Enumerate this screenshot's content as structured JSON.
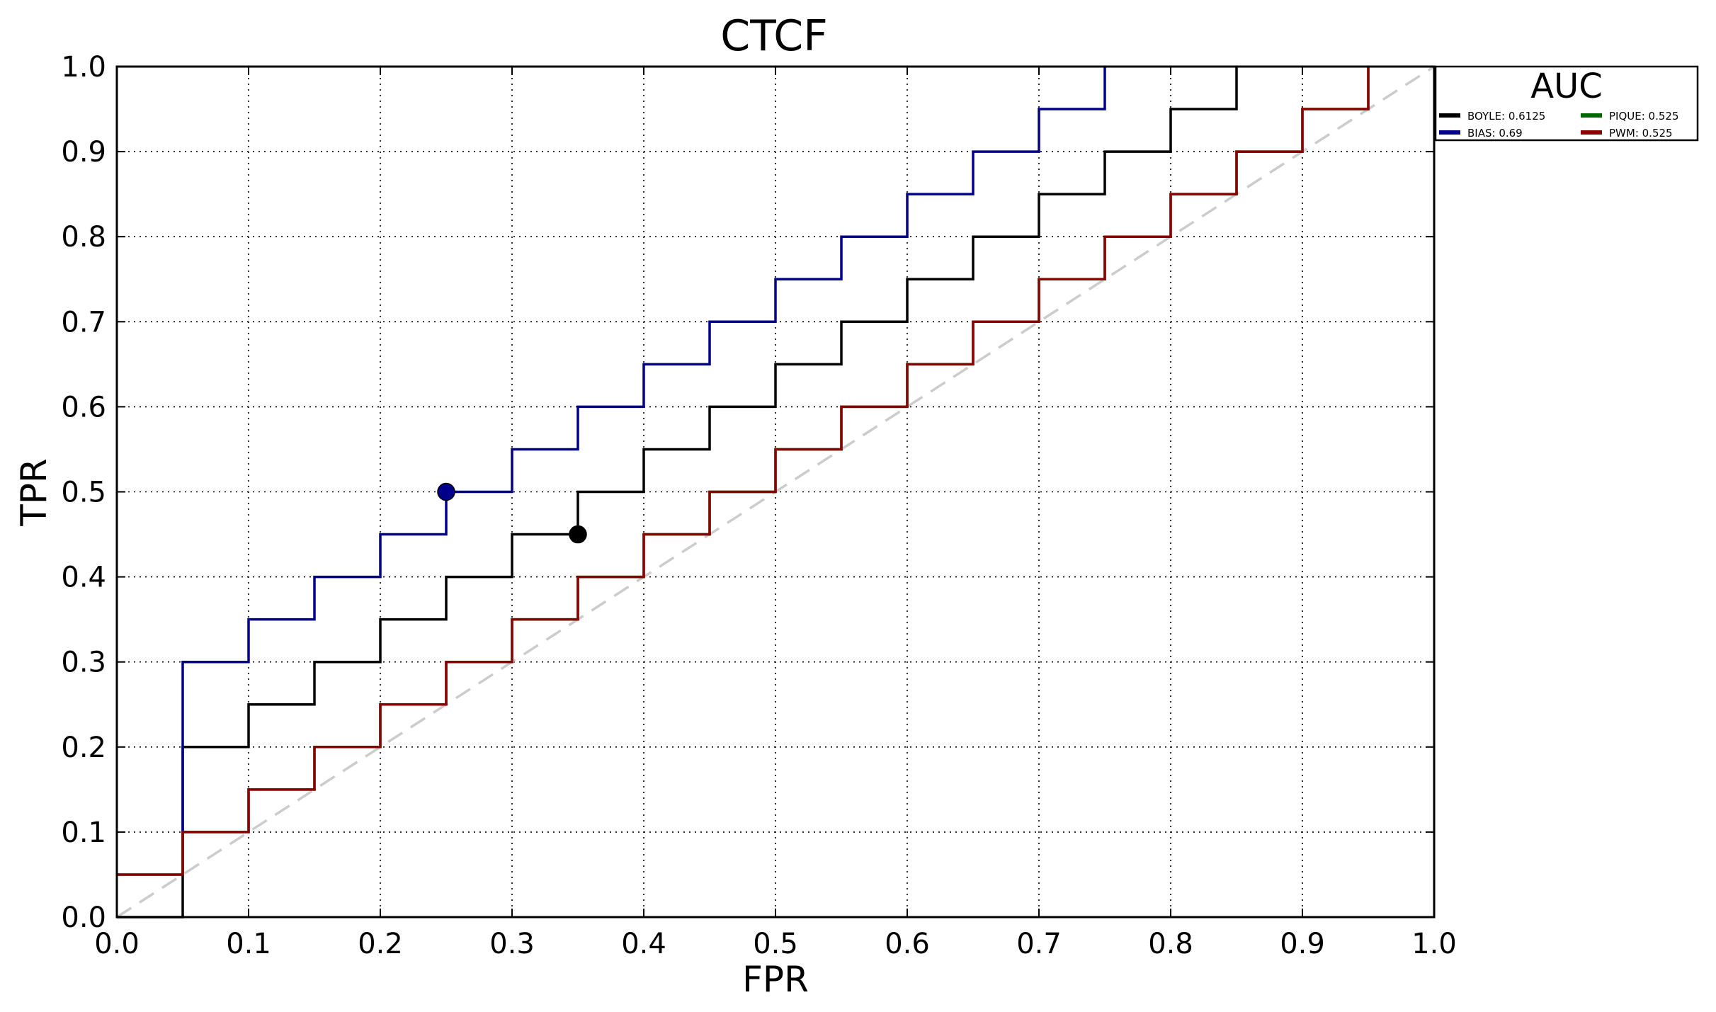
{
  "chart_data": {
    "type": "line",
    "title": "CTCF",
    "xlabel": "FPR",
    "ylabel": "TPR",
    "xlim": [
      0,
      1
    ],
    "ylim": [
      0,
      1
    ],
    "xticks": [
      "0.0",
      "0.1",
      "0.2",
      "0.3",
      "0.4",
      "0.5",
      "0.6",
      "0.7",
      "0.8",
      "0.9",
      "1.0"
    ],
    "yticks": [
      "0.0",
      "0.1",
      "0.2",
      "0.3",
      "0.4",
      "0.5",
      "0.6",
      "0.7",
      "0.8",
      "0.9",
      "1.0"
    ],
    "grid": true,
    "legend": {
      "title": "AUC",
      "placement": "outside-top-right",
      "entries": [
        {
          "label": "BOYLE: 0.6125",
          "color": "#000000"
        },
        {
          "label": "PIQUE: 0.525",
          "color": "#006400"
        },
        {
          "label": "BIAS: 0.69",
          "color": "#00008b"
        },
        {
          "label": "PWM: 0.525",
          "color": "#8b0000"
        }
      ]
    },
    "series": [
      {
        "name": "BOYLE",
        "color": "#000000",
        "x": [
          0.0,
          0.0,
          0.05,
          0.05,
          0.1,
          0.1,
          0.15,
          0.15,
          0.2,
          0.2,
          0.25,
          0.25,
          0.3,
          0.3,
          0.35,
          0.35,
          0.4,
          0.4,
          0.45,
          0.45,
          0.5,
          0.5,
          0.55,
          0.55,
          0.6,
          0.6,
          0.65,
          0.65,
          0.7,
          0.7,
          0.75,
          0.75,
          0.8,
          0.8,
          0.85,
          0.85
        ],
        "y": [
          0.0,
          0.0,
          0.0,
          0.2,
          0.2,
          0.25,
          0.25,
          0.3,
          0.3,
          0.35,
          0.35,
          0.4,
          0.4,
          0.45,
          0.45,
          0.5,
          0.5,
          0.55,
          0.55,
          0.6,
          0.6,
          0.65,
          0.65,
          0.7,
          0.7,
          0.75,
          0.75,
          0.8,
          0.8,
          0.85,
          0.85,
          0.9,
          0.9,
          0.95,
          0.95,
          1.0
        ],
        "marker": {
          "x": 0.35,
          "y": 0.45
        }
      },
      {
        "name": "PIQUE",
        "color": "#006400",
        "x": [
          0.0,
          0.05,
          0.05,
          0.1,
          0.1,
          0.15,
          0.15,
          0.2,
          0.2,
          0.25,
          0.25,
          0.3,
          0.3,
          0.35,
          0.35,
          0.4,
          0.4,
          0.45,
          0.45,
          0.5,
          0.5,
          0.55,
          0.55,
          0.6,
          0.6,
          0.65,
          0.65,
          0.7,
          0.7,
          0.75,
          0.75,
          0.8,
          0.8,
          0.85,
          0.85,
          0.9,
          0.9,
          0.95,
          0.95
        ],
        "y": [
          0.05,
          0.05,
          0.1,
          0.1,
          0.15,
          0.15,
          0.2,
          0.2,
          0.25,
          0.25,
          0.3,
          0.3,
          0.35,
          0.35,
          0.4,
          0.4,
          0.45,
          0.45,
          0.5,
          0.5,
          0.55,
          0.55,
          0.6,
          0.6,
          0.65,
          0.65,
          0.7,
          0.7,
          0.75,
          0.75,
          0.8,
          0.8,
          0.85,
          0.85,
          0.9,
          0.9,
          0.95,
          0.95,
          1.0
        ]
      },
      {
        "name": "BIAS",
        "color": "#00008b",
        "x": [
          0.05,
          0.05,
          0.1,
          0.1,
          0.15,
          0.15,
          0.2,
          0.2,
          0.25,
          0.25,
          0.3,
          0.3,
          0.35,
          0.35,
          0.4,
          0.4,
          0.45,
          0.45,
          0.5,
          0.5,
          0.55,
          0.55,
          0.6,
          0.6,
          0.65,
          0.65,
          0.7,
          0.7,
          0.75,
          0.75
        ],
        "y": [
          0.1,
          0.3,
          0.3,
          0.35,
          0.35,
          0.4,
          0.4,
          0.45,
          0.45,
          0.5,
          0.5,
          0.55,
          0.55,
          0.6,
          0.6,
          0.65,
          0.65,
          0.7,
          0.7,
          0.75,
          0.75,
          0.8,
          0.8,
          0.85,
          0.85,
          0.9,
          0.9,
          0.95,
          0.95,
          1.0
        ],
        "marker": {
          "x": 0.25,
          "y": 0.5
        }
      },
      {
        "name": "PWM",
        "color": "#8b0000",
        "x": [
          0.0,
          0.05,
          0.05,
          0.1,
          0.1,
          0.15,
          0.15,
          0.2,
          0.2,
          0.25,
          0.25,
          0.3,
          0.3,
          0.35,
          0.35,
          0.4,
          0.4,
          0.45,
          0.45,
          0.5,
          0.5,
          0.55,
          0.55,
          0.6,
          0.6,
          0.65,
          0.65,
          0.7,
          0.7,
          0.75,
          0.75,
          0.8,
          0.8,
          0.85,
          0.85,
          0.9,
          0.9,
          0.95,
          0.95
        ],
        "y": [
          0.05,
          0.05,
          0.1,
          0.1,
          0.15,
          0.15,
          0.2,
          0.2,
          0.25,
          0.25,
          0.3,
          0.3,
          0.35,
          0.35,
          0.4,
          0.4,
          0.45,
          0.45,
          0.5,
          0.5,
          0.55,
          0.55,
          0.6,
          0.6,
          0.65,
          0.65,
          0.7,
          0.7,
          0.75,
          0.75,
          0.8,
          0.8,
          0.85,
          0.85,
          0.9,
          0.9,
          0.95,
          0.95,
          1.0
        ]
      }
    ],
    "reference_line": {
      "x": [
        0,
        1
      ],
      "y": [
        0,
        1
      ],
      "color": "#cccccc",
      "style": "dashed"
    }
  }
}
